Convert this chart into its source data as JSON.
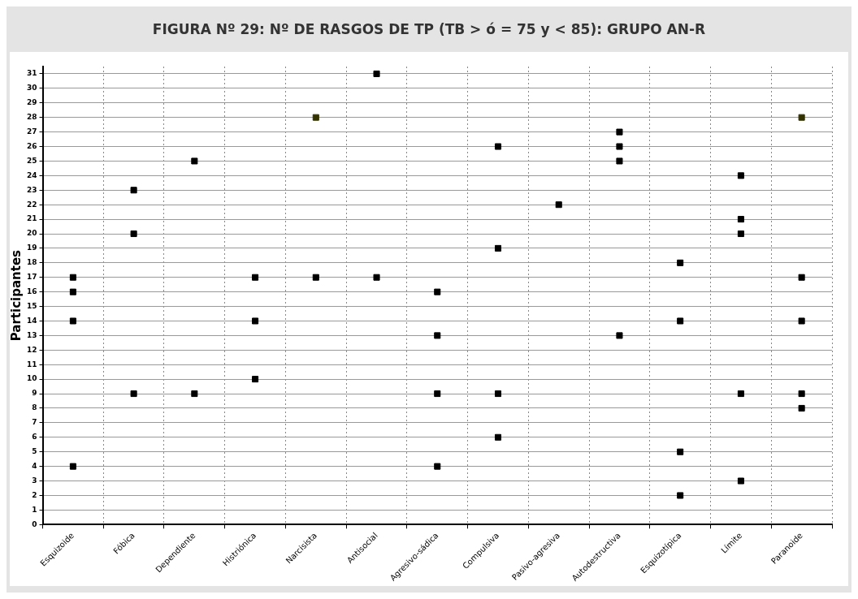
{
  "chart_data": {
    "type": "scatter",
    "title": "FIGURA Nº 29:  Nº DE RASGOS DE TP (TB > ó = 75 y < 85): GRUPO AN-R",
    "ylabel": "Participantes",
    "categories": [
      "Esquizoide",
      "Fóbica",
      "Dependiente",
      "Histriónica",
      "Narcisista",
      "Antisocial",
      "Agresivo-sádica",
      "Compulsiva",
      "Pasivo-agresiva",
      "Autodestructiva",
      "Esquizotípica",
      "Límite",
      "Paranoide"
    ],
    "series": [
      {
        "color": "#000000",
        "x": [
          "Esquizoide",
          "Esquizoide",
          "Esquizoide",
          "Esquizoide",
          "Fóbica",
          "Fóbica",
          "Fóbica",
          "Dependiente",
          "Dependiente",
          "Histriónica",
          "Histriónica",
          "Histriónica",
          "Narcisista",
          "Antisocial",
          "Antisocial",
          "Agresivo-sádica",
          "Agresivo-sádica",
          "Agresivo-sádica",
          "Agresivo-sádica",
          "Compulsiva",
          "Compulsiva",
          "Compulsiva",
          "Compulsiva",
          "Pasivo-agresiva",
          "Autodestructiva",
          "Autodestructiva",
          "Autodestructiva",
          "Autodestructiva",
          "Esquizotípica",
          "Esquizotípica",
          "Esquizotípica",
          "Esquizotípica",
          "Límite",
          "Límite",
          "Límite",
          "Límite",
          "Límite",
          "Paranoide",
          "Paranoide",
          "Paranoide",
          "Paranoide"
        ],
        "values": [
          17,
          16,
          14,
          4,
          23,
          20,
          9,
          25,
          9,
          17,
          14,
          10,
          17,
          31,
          17,
          16,
          13,
          9,
          4,
          26,
          19,
          9,
          6,
          22,
          27,
          26,
          25,
          13,
          18,
          14,
          5,
          2,
          24,
          21,
          20,
          9,
          3,
          17,
          14,
          9,
          8
        ]
      },
      {
        "color": "#333300",
        "x": [
          "Narcisista",
          "Paranoide"
        ],
        "values": [
          28,
          28
        ]
      }
    ],
    "ylim": [
      0,
      31.5
    ],
    "yticks": [
      0,
      1,
      2,
      3,
      4,
      5,
      6,
      7,
      8,
      9,
      10,
      11,
      12,
      13,
      14,
      15,
      16,
      17,
      18,
      19,
      20,
      21,
      22,
      23,
      24,
      25,
      26,
      27,
      28,
      29,
      30,
      31
    ],
    "grid": true,
    "legend": false,
    "marker": "square"
  }
}
